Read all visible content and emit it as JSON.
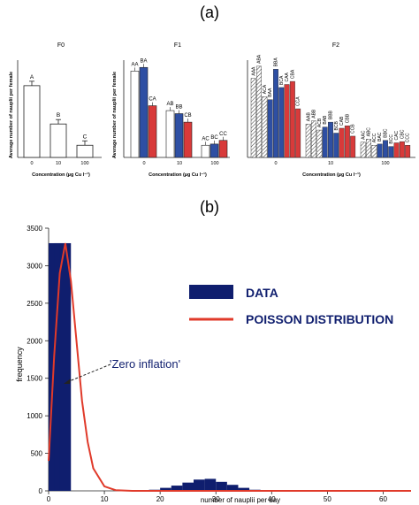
{
  "panel_labels": {
    "a": "(a)",
    "b": "(b)"
  },
  "colors": {
    "data_bar": "#0f1e6e",
    "poisson": "#e03a2a",
    "blue_bar": "#2e4fa3",
    "red_bar": "#d83a3a",
    "white_bar": "#ffffff"
  },
  "chart_data": [
    {
      "type": "bar",
      "title": "F0",
      "ylabel": "Average number of nauplii per female",
      "xlabel": "Concentration (µg Cu l⁻¹)",
      "categories": [
        "0",
        "10",
        "100"
      ],
      "values": [
        118,
        55,
        20
      ],
      "letters": [
        "A",
        "B",
        "C"
      ],
      "ylim": [
        0,
        160
      ]
    },
    {
      "type": "bar",
      "title": "F1",
      "ylabel": "Average number of nauplii per female",
      "xlabel": "Concentration (µg Cu l⁻¹)",
      "categories": [
        "0",
        "10",
        "100"
      ],
      "series": [
        {
          "fill": "white",
          "values": [
            142,
            77,
            20
          ]
        },
        {
          "fill": "blue",
          "values": [
            148,
            72,
            22
          ]
        },
        {
          "fill": "red",
          "values": [
            85,
            58,
            28
          ]
        }
      ],
      "letters": [
        [
          "AA",
          "BA",
          "CA"
        ],
        [
          "AB",
          "BB",
          "CB"
        ],
        [
          "AC",
          "BC",
          "CC"
        ]
      ],
      "ylim": [
        0,
        160
      ]
    },
    {
      "type": "bar",
      "title": "F2",
      "xlabel": "Concentration (µg Cu l⁻¹)",
      "categories": [
        "0",
        "10",
        "100"
      ],
      "values": [
        [
          130,
          150,
          100,
          95,
          145,
          115,
          120,
          125,
          80
        ],
        [
          55,
          60,
          45,
          50,
          58,
          40,
          48,
          52,
          35
        ],
        [
          25,
          30,
          20,
          22,
          28,
          18,
          24,
          26,
          20
        ]
      ],
      "letters": [
        [
          "AAA",
          "ABA",
          "ACA",
          "BAA",
          "BBA",
          "BCA",
          "CAA",
          "CBA",
          "CCA"
        ],
        [
          "AAB",
          "ABB",
          "ACB",
          "BAB",
          "BBB",
          "BCB",
          "CAB",
          "CBB",
          "CCB"
        ],
        [
          "AAC",
          "ABC",
          "ACC",
          "BAC",
          "BBC",
          "BCC",
          "CAC",
          "CBC",
          "CCC"
        ]
      ],
      "ylim": [
        0,
        160
      ]
    },
    {
      "type": "bar",
      "xlabel": "number of nauplii per day",
      "ylabel": "frequency",
      "xlim": [
        0,
        65
      ],
      "ylim": [
        0,
        3500
      ],
      "xticks": [
        0,
        10,
        20,
        30,
        40,
        50,
        60
      ],
      "yticks": [
        0,
        500,
        1000,
        1500,
        2000,
        2500,
        3000,
        3500
      ],
      "legend_position": "center-right",
      "series": [
        {
          "name": "DATA",
          "type": "bar",
          "x": [
            0,
            1,
            2,
            18,
            20,
            22,
            24,
            26,
            28,
            30,
            32,
            34,
            36
          ],
          "values": [
            3300,
            3300,
            3300,
            15,
            40,
            70,
            110,
            150,
            160,
            120,
            80,
            40,
            15
          ]
        },
        {
          "name": "POISSON DISTRIBUTION",
          "type": "line",
          "x": [
            0,
            1,
            2,
            3,
            4,
            5,
            6,
            7,
            8,
            10,
            12,
            15,
            20,
            30,
            40,
            65
          ],
          "values": [
            400,
            1800,
            2900,
            3300,
            2800,
            2000,
            1200,
            650,
            300,
            60,
            10,
            0,
            0,
            0,
            0,
            0
          ]
        }
      ],
      "annotation": "'Zero inflation'"
    }
  ]
}
